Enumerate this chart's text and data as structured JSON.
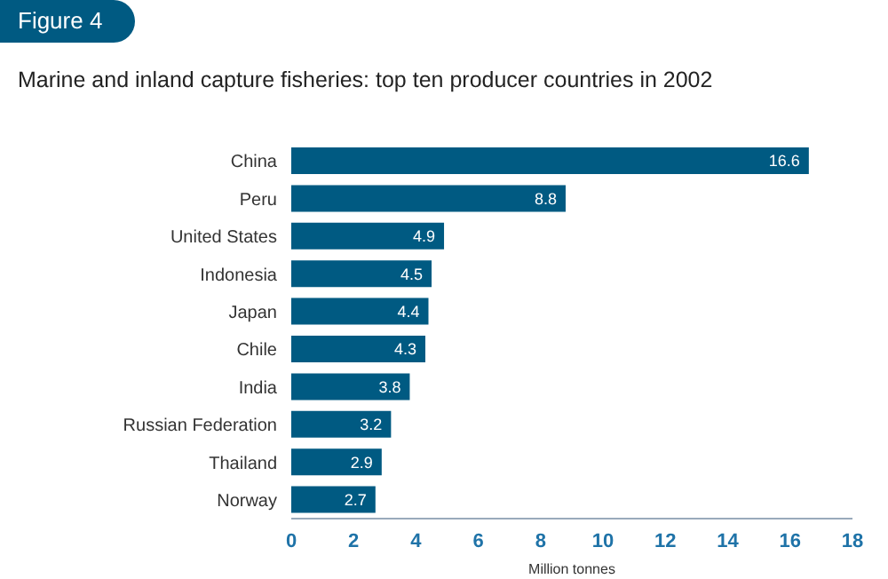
{
  "chart_data": {
    "type": "bar",
    "orientation": "horizontal",
    "title": "Marine and inland capture fisheries: top ten producer countries in 2002",
    "annotations": [
      "Figure 4"
    ],
    "xlabel": "Million tonnes",
    "categories": [
      "China",
      "Peru",
      "United States",
      "Indonesia",
      "Japan",
      "Chile",
      "India",
      "Russian Federation",
      "Thailand",
      "Norway"
    ],
    "values": [
      16.6,
      8.8,
      4.9,
      4.5,
      4.4,
      4.3,
      3.8,
      3.2,
      2.9,
      2.7
    ],
    "color": "#005a82",
    "xlim": [
      0,
      18
    ],
    "xticks": [
      0,
      2,
      4,
      6,
      8,
      10,
      12,
      14,
      16,
      18
    ],
    "data_labels": true,
    "grid": false
  }
}
